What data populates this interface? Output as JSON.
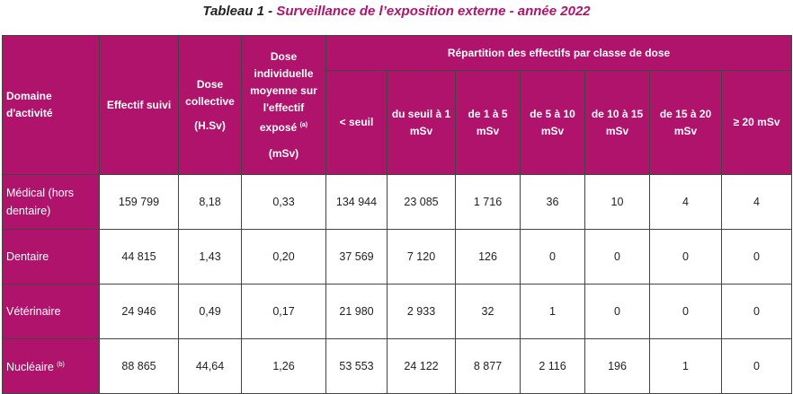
{
  "title": {
    "prefix": "Tableau 1 - ",
    "main": "Surveillance de l’exposition externe - année 2022"
  },
  "headers": {
    "domaine": "Domaine d'activité",
    "effectif": "Effectif suivi",
    "dose_coll": "Dose collective",
    "dose_coll_unit": "(H.Sv)",
    "dose_ind": "Dose individuelle moyenne sur l'effectif exposé",
    "dose_ind_sup": "(a)",
    "dose_ind_unit": "(mSv)",
    "repartition": "Répartition des effectifs par classe de dose",
    "classes": [
      "< seuil",
      "du seuil à 1 mSv",
      "de 1 à 5 mSv",
      "de 5 à 10 mSv",
      "de 10 à 15 mSv",
      "de 15 à 20 mSv",
      "≥ 20 mSv"
    ]
  },
  "rows": [
    {
      "domaine": "Médical (hors dentaire)",
      "sup": "",
      "effectif": "159 799",
      "dose_coll": "8,18",
      "dose_ind": "0,33",
      "classes": [
        "134 944",
        "23 085",
        "1 716",
        "36",
        "10",
        "4",
        "4"
      ]
    },
    {
      "domaine": "Dentaire",
      "sup": "",
      "effectif": "44 815",
      "dose_coll": "1,43",
      "dose_ind": "0,20",
      "classes": [
        "37 569",
        "7 120",
        "126",
        "0",
        "0",
        "0",
        "0"
      ]
    },
    {
      "domaine": "Vétérinaire",
      "sup": "",
      "effectif": "24 946",
      "dose_coll": "0,49",
      "dose_ind": "0,17",
      "classes": [
        "21 980",
        "2 933",
        "32",
        "1",
        "0",
        "0",
        "0"
      ]
    },
    {
      "domaine": "Nucléaire",
      "sup": "(b)",
      "effectif": "88 865",
      "dose_coll": "44,64",
      "dose_ind": "1,26",
      "classes": [
        "53 553",
        "24 122",
        "8 877",
        "2 116",
        "196",
        "1",
        "0"
      ]
    }
  ]
}
